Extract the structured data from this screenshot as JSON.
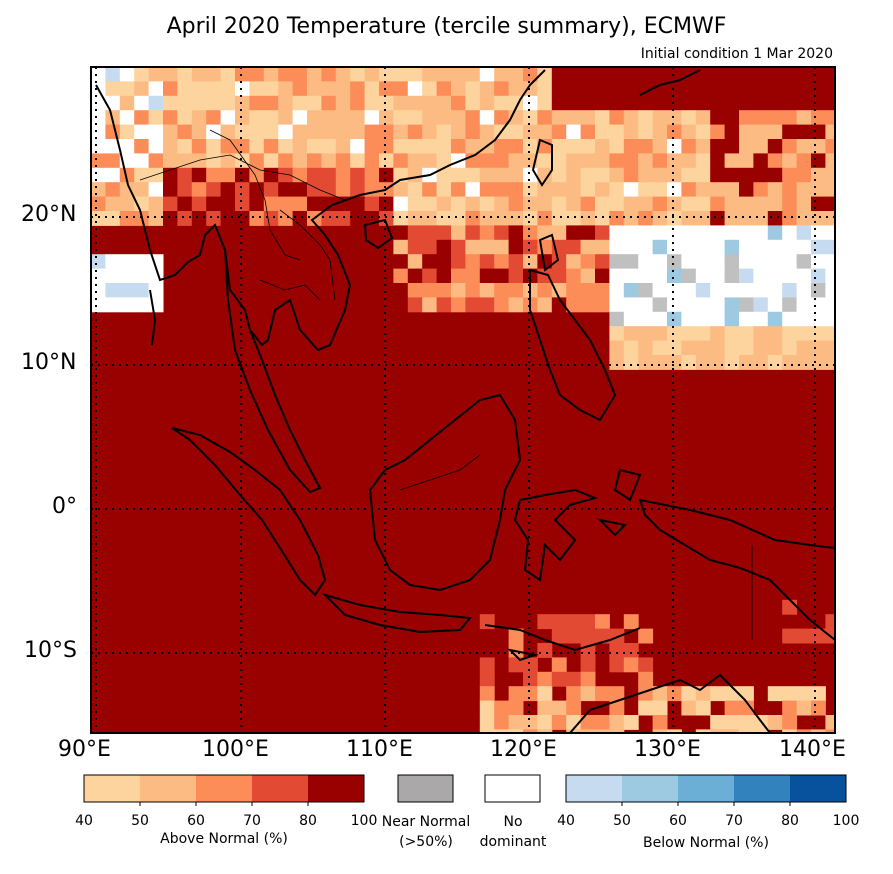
{
  "title": "April 2020 Temperature (tercile summary), ECMWF",
  "subtitle": "Initial condition 1 Mar 2020",
  "axes": {
    "lon_labels": [
      "90°E",
      "100°E",
      "110°E",
      "120°E",
      "130°E",
      "140°E"
    ],
    "lat_labels": [
      "20°N",
      "10°N",
      "0°",
      "10°S"
    ]
  },
  "legend": {
    "above": {
      "label": "Above Normal (%)",
      "ticks": [
        "40",
        "50",
        "60",
        "70",
        "80",
        "100"
      ],
      "colors": [
        "#fdd49e",
        "#fdbb84",
        "#fc8d59",
        "#e34a33",
        "#990000"
      ]
    },
    "near": {
      "label_line1": "Near Normal",
      "label_line2": "(>50%)",
      "color": "#aaa8a8"
    },
    "none": {
      "label_line1": "No",
      "label_line2": "dominant",
      "color": "#ffffff"
    },
    "below": {
      "label": "Below Normal (%)",
      "ticks": [
        "40",
        "50",
        "60",
        "70",
        "80",
        "100"
      ],
      "colors": [
        "#c6dbef",
        "#9ecae1",
        "#6baed6",
        "#3182bd",
        "#08519c"
      ]
    }
  },
  "colors": {
    "dark": "#990000",
    "land": "#000000"
  }
}
